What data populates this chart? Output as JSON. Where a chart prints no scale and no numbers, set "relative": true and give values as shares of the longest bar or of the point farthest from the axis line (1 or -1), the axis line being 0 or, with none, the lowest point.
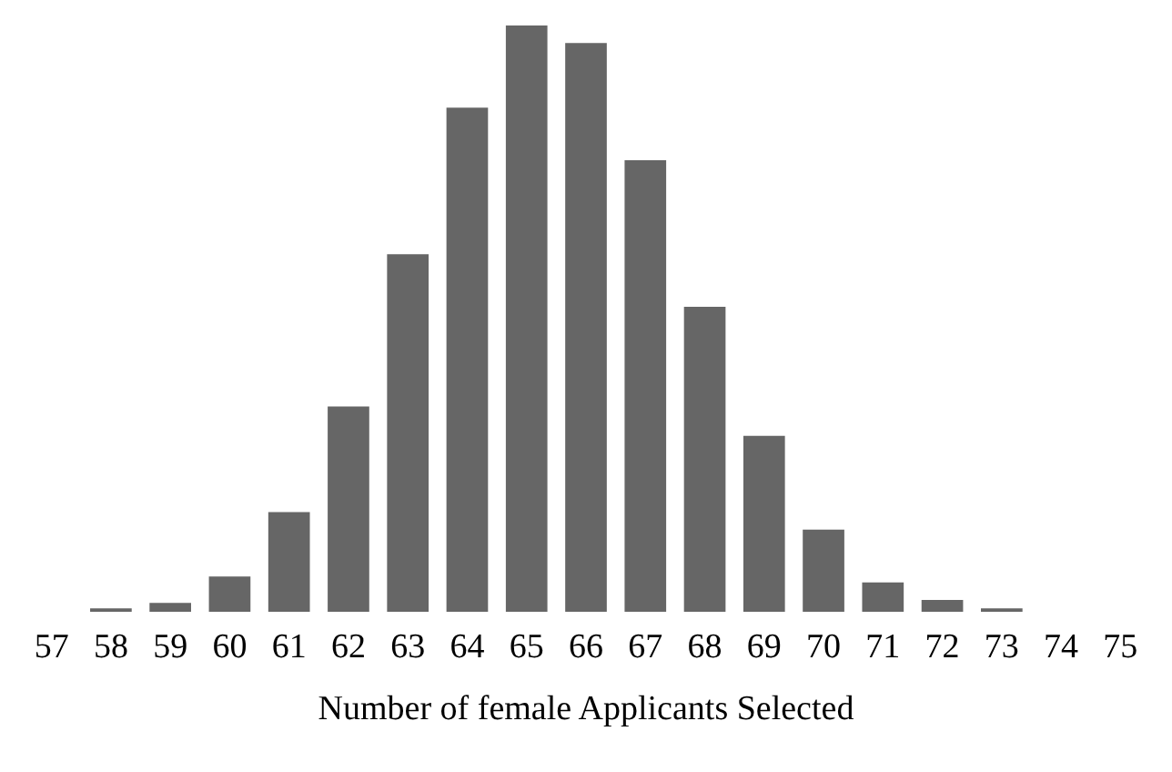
{
  "chart_data": {
    "type": "bar",
    "relative": true,
    "xlabel": "Number of female Applicants Selected",
    "categories": [
      "57",
      "58",
      "59",
      "60",
      "61",
      "62",
      "63",
      "64",
      "65",
      "66",
      "67",
      "68",
      "69",
      "70",
      "71",
      "72",
      "73",
      "74",
      "75"
    ],
    "values": [
      0,
      0.006,
      0.015,
      0.06,
      0.17,
      0.35,
      0.61,
      0.86,
      1,
      0.97,
      0.77,
      0.52,
      0.3,
      0.14,
      0.05,
      0.02,
      0.006,
      0,
      0
    ],
    "color": "#666666",
    "grid": false
  }
}
